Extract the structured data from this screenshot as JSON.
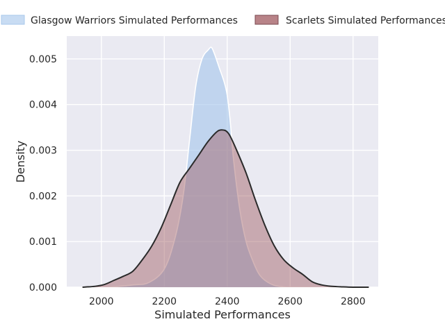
{
  "chart_data": {
    "type": "area",
    "title": "",
    "xlabel": "Simulated Performances",
    "ylabel": "Density",
    "xlim": [
      1890,
      2880
    ],
    "ylim": [
      0,
      0.0055
    ],
    "xticks": [
      2000,
      2200,
      2400,
      2600,
      2800
    ],
    "xtick_labels": [
      "2000",
      "2200",
      "2400",
      "2600",
      "2800"
    ],
    "yticks": [
      0,
      0.001,
      0.002,
      0.003,
      0.004,
      0.005
    ],
    "ytick_labels": [
      "0.000",
      "0.001",
      "0.002",
      "0.003",
      "0.004",
      "0.005"
    ],
    "grid": true,
    "legend_position": "top",
    "series": [
      {
        "name": "Glasgow Warriors Simulated Performances",
        "fill_color": "#a7c7eb",
        "line_color": "#ffffff",
        "x": [
          2025,
          2100,
          2150,
          2200,
          2235,
          2260,
          2280,
          2300,
          2320,
          2340,
          2350,
          2360,
          2375,
          2390,
          2400,
          2410,
          2420,
          2440,
          2460,
          2480,
          2500,
          2520,
          2550,
          2590
        ],
        "y": [
          0,
          5e-05,
          0.0001,
          0.0004,
          0.0011,
          0.002,
          0.0032,
          0.0044,
          0.005,
          0.0052,
          0.00525,
          0.0051,
          0.0048,
          0.0045,
          0.0042,
          0.0036,
          0.0028,
          0.0017,
          0.001,
          0.0006,
          0.0003,
          0.00015,
          4e-05,
          0
        ]
      },
      {
        "name": "Scarlets Simulated Performances",
        "fill_color": "#a05a60",
        "line_color": "#2a2a2a",
        "x": [
          1940,
          1980,
          2010,
          2040,
          2070,
          2100,
          2130,
          2160,
          2190,
          2220,
          2250,
          2280,
          2310,
          2340,
          2370,
          2390,
          2400,
          2410,
          2430,
          2460,
          2490,
          2520,
          2550,
          2580,
          2610,
          2640,
          2670,
          2700,
          2730,
          2760,
          2800,
          2850
        ],
        "y": [
          0,
          2e-05,
          6e-05,
          0.00015,
          0.00024,
          0.00035,
          0.0006,
          0.0009,
          0.0013,
          0.0018,
          0.0023,
          0.0026,
          0.0029,
          0.0032,
          0.00342,
          0.00344,
          0.0034,
          0.0033,
          0.003,
          0.0025,
          0.0019,
          0.00135,
          0.0009,
          0.0006,
          0.00042,
          0.00028,
          0.00012,
          5e-05,
          2e-05,
          1e-05,
          0,
          0
        ]
      }
    ]
  }
}
